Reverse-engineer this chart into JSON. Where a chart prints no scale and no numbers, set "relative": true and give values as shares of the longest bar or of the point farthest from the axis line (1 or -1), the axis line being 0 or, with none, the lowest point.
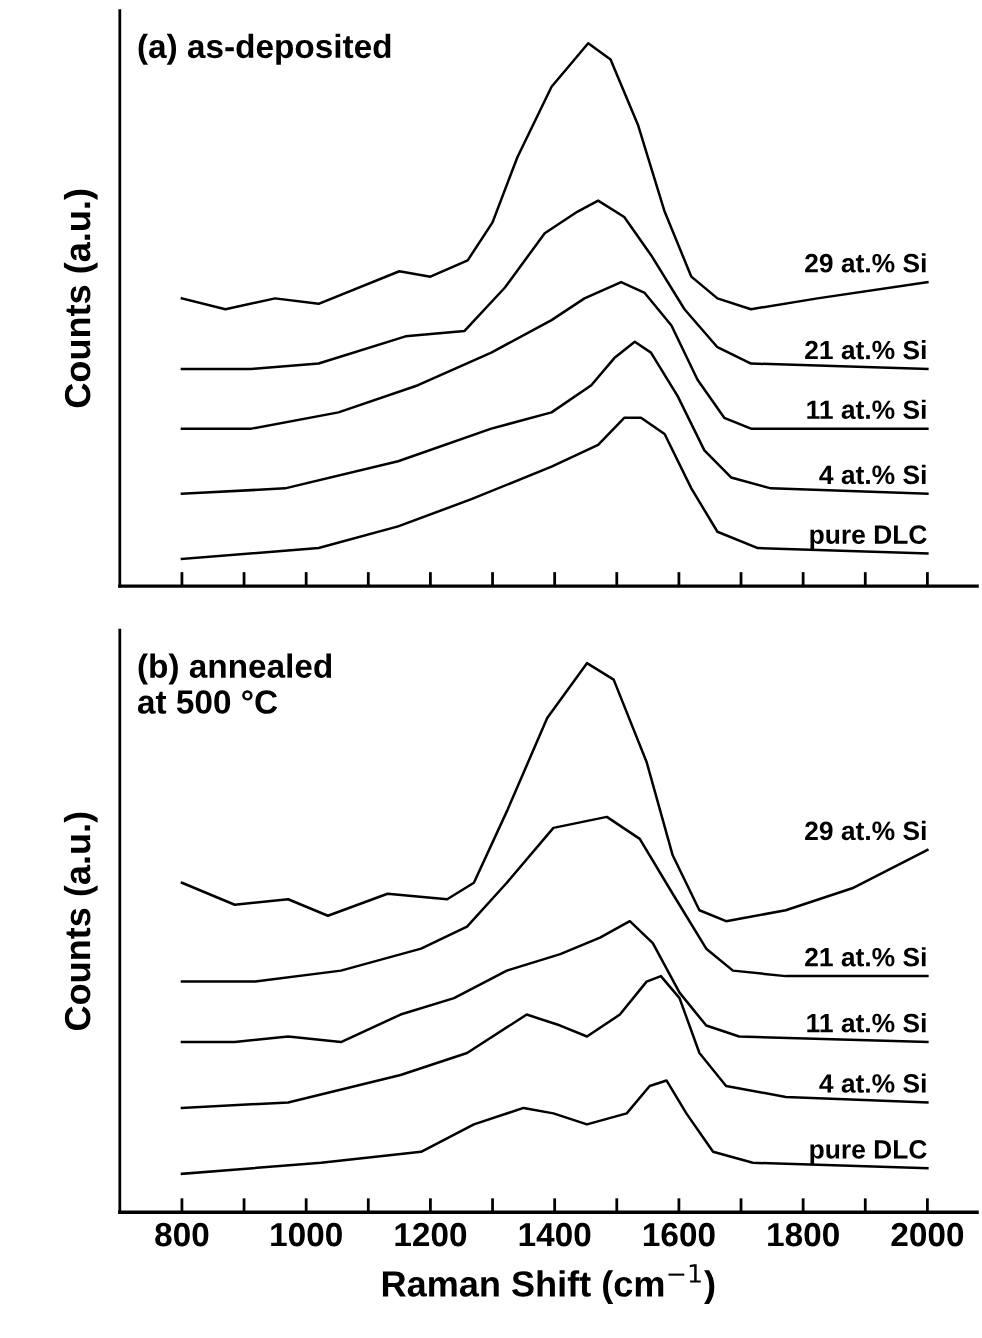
{
  "chart_data": [
    {
      "type": "line",
      "relative": true,
      "ylabel": "Counts (a.u.)",
      "annotations": [
        "(a) as-deposited"
      ],
      "xlim": [
        700,
        2080
      ],
      "xticks": [
        800,
        {
          "value": 900,
          "label": null
        },
        1000,
        {
          "value": 1100,
          "label": null
        },
        1200,
        {
          "value": 1300,
          "label": null
        },
        1400,
        {
          "value": 1500,
          "label": null
        },
        1600,
        {
          "value": 1700,
          "label": null
        },
        1800,
        {
          "value": 1900,
          "label": null
        },
        2000
      ],
      "tick_labels": false,
      "grid": false,
      "legend": false,
      "marker": "none",
      "line_style": "solid",
      "series": [
        {
          "name": "29 at.% Si",
          "color": "#000000",
          "x": [
            800,
            870,
            950,
            1020,
            1150,
            1200,
            1260,
            1300,
            1340,
            1395,
            1454,
            1490,
            1534,
            1577,
            1620,
            1662,
            1716,
            1823,
            2000
          ],
          "values": [
            0.53,
            0.51,
            0.53,
            0.52,
            0.58,
            0.57,
            0.6,
            0.67,
            0.79,
            0.92,
            1.0,
            0.97,
            0.85,
            0.69,
            0.57,
            0.53,
            0.51,
            0.53,
            0.56
          ]
        },
        {
          "name": "21 at.% Si",
          "color": "#000000",
          "x": [
            800,
            912,
            1020,
            1160,
            1255,
            1320,
            1384,
            1437,
            1470,
            1512,
            1555,
            1609,
            1662,
            1716,
            2000
          ],
          "values": [
            0.4,
            0.4,
            0.41,
            0.46,
            0.47,
            0.55,
            0.65,
            0.69,
            0.71,
            0.68,
            0.61,
            0.51,
            0.44,
            0.41,
            0.4
          ]
        },
        {
          "name": "11 at.% Si",
          "color": "#000000",
          "x": [
            800,
            912,
            1052,
            1180,
            1298,
            1395,
            1448,
            1507,
            1545,
            1588,
            1630,
            1673,
            1716,
            2000
          ],
          "values": [
            0.29,
            0.29,
            0.32,
            0.37,
            0.43,
            0.49,
            0.53,
            0.56,
            0.54,
            0.48,
            0.38,
            0.31,
            0.29,
            0.29
          ]
        },
        {
          "name": "4 at.% Si",
          "color": "#000000",
          "x": [
            800,
            966,
            1148,
            1298,
            1395,
            1459,
            1496,
            1529,
            1555,
            1598,
            1641,
            1684,
            1748,
            2000
          ],
          "values": [
            0.17,
            0.18,
            0.23,
            0.29,
            0.32,
            0.37,
            0.42,
            0.45,
            0.43,
            0.35,
            0.25,
            0.2,
            0.18,
            0.17
          ]
        },
        {
          "name": "pure DLC",
          "color": "#000000",
          "x": [
            800,
            1020,
            1148,
            1266,
            1395,
            1470,
            1512,
            1539,
            1577,
            1620,
            1662,
            1727,
            2000
          ],
          "values": [
            0.05,
            0.07,
            0.11,
            0.16,
            0.22,
            0.26,
            0.31,
            0.31,
            0.28,
            0.18,
            0.1,
            0.07,
            0.06
          ]
        }
      ]
    },
    {
      "type": "line",
      "relative": true,
      "ylabel": "Counts (a.u.)",
      "xlabel": "Raman Shift (cm$^{−1}$)",
      "annotations": [
        "(b) annealed\nat 500 °C"
      ],
      "xlim": [
        700,
        2080
      ],
      "xticks": [
        800,
        {
          "value": 900,
          "label": null
        },
        1000,
        {
          "value": 1100,
          "label": null
        },
        1200,
        {
          "value": 1300,
          "label": null
        },
        1400,
        {
          "value": 1500,
          "label": null
        },
        1600,
        {
          "value": 1700,
          "label": null
        },
        1800,
        {
          "value": 1900,
          "label": null
        },
        2000
      ],
      "tick_labels": "x",
      "grid": false,
      "legend": false,
      "marker": "none",
      "line_style": "solid",
      "series": [
        {
          "name": "29 at.% Si",
          "color": "#000000",
          "x": [
            800,
            885,
            971,
            1035,
            1131,
            1227,
            1270,
            1323,
            1388,
            1452,
            1495,
            1548,
            1590,
            1633,
            1676,
            1772,
            1879,
            2000
          ],
          "values": [
            0.6,
            0.56,
            0.57,
            0.54,
            0.58,
            0.57,
            0.6,
            0.73,
            0.9,
            1.0,
            0.97,
            0.82,
            0.65,
            0.55,
            0.53,
            0.55,
            0.59,
            0.66
          ]
        },
        {
          "name": "21 at.% Si",
          "color": "#000000",
          "x": [
            800,
            918,
            1056,
            1185,
            1259,
            1323,
            1398,
            1484,
            1537,
            1590,
            1644,
            1687,
            1772,
            2000
          ],
          "values": [
            0.42,
            0.42,
            0.44,
            0.48,
            0.52,
            0.6,
            0.7,
            0.72,
            0.68,
            0.58,
            0.48,
            0.44,
            0.43,
            0.43
          ]
        },
        {
          "name": "11 at.% Si",
          "color": "#000000",
          "x": [
            800,
            885,
            971,
            1056,
            1152,
            1238,
            1323,
            1409,
            1473,
            1521,
            1558,
            1601,
            1644,
            1697,
            2000
          ],
          "values": [
            0.31,
            0.31,
            0.32,
            0.31,
            0.36,
            0.39,
            0.44,
            0.47,
            0.5,
            0.53,
            0.49,
            0.4,
            0.34,
            0.32,
            0.31
          ]
        },
        {
          "name": "4 at.% Si",
          "color": "#000000",
          "x": [
            800,
            971,
            1152,
            1259,
            1355,
            1409,
            1452,
            1505,
            1548,
            1571,
            1601,
            1633,
            1676,
            1772,
            2000
          ],
          "values": [
            0.19,
            0.2,
            0.25,
            0.29,
            0.36,
            0.34,
            0.32,
            0.36,
            0.42,
            0.43,
            0.39,
            0.29,
            0.23,
            0.21,
            0.2
          ]
        },
        {
          "name": "pure DLC",
          "color": "#000000",
          "x": [
            800,
            1024,
            1185,
            1270,
            1350,
            1398,
            1452,
            1516,
            1553,
            1580,
            1612,
            1655,
            1719,
            2000
          ],
          "values": [
            0.07,
            0.09,
            0.11,
            0.16,
            0.19,
            0.18,
            0.16,
            0.18,
            0.23,
            0.24,
            0.18,
            0.11,
            0.09,
            0.08
          ]
        }
      ]
    }
  ]
}
